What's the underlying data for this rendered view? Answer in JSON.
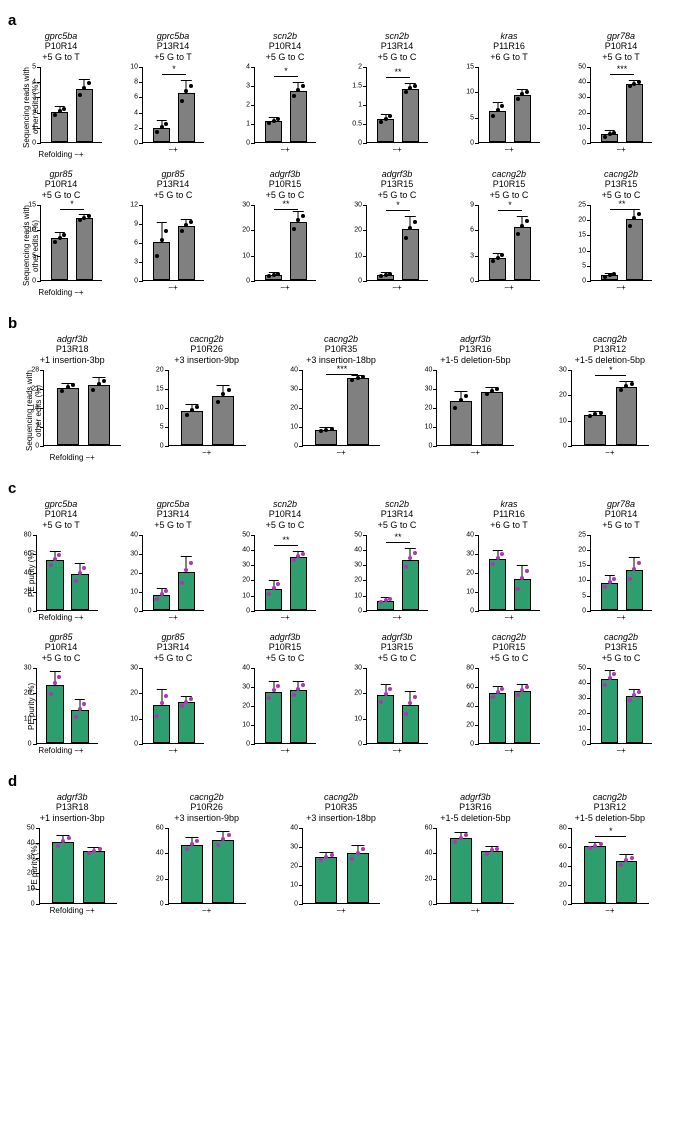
{
  "global": {
    "refolding_label": "Refolding",
    "xticks": [
      "−",
      "+"
    ],
    "gray_bar_color": "#808080",
    "green_bar_color": "#2e9e6e",
    "black_dot": "#000000",
    "magenta_dot": "#b033b8",
    "bar_border": "#000000",
    "bg": "#ffffff"
  },
  "panels": [
    {
      "id": "a",
      "ylabel": "Sequencing reads with\nother edits (%)",
      "bar_color": "gray",
      "dot_color": "black",
      "rows": [
        [
          {
            "gene": "gprc5ba",
            "sub": "P10R14\n+5 G to T",
            "ymax": 5,
            "ytick": 1,
            "vals": [
              2.0,
              3.5
            ],
            "err": [
              0.3,
              0.6
            ],
            "sig": ""
          },
          {
            "gene": "gprc5ba",
            "sub": "P13R14\n+5 G to T",
            "ymax": 10,
            "ytick": 2,
            "vals": [
              1.9,
              6.5
            ],
            "err": [
              0.8,
              1.5
            ],
            "sig": "*"
          },
          {
            "gene": "scn2b",
            "sub": "P10R14\n+5 G to C",
            "ymax": 4,
            "ytick": 1,
            "vals": [
              1.1,
              2.7
            ],
            "err": [
              0.15,
              0.4
            ],
            "sig": "*"
          },
          {
            "gene": "scn2b",
            "sub": "P13R14\n+5 G to C",
            "ymax": 2,
            "ytick": 0.5,
            "vals": [
              0.6,
              1.4
            ],
            "err": [
              0.12,
              0.12
            ],
            "sig": "**"
          },
          {
            "gene": "kras",
            "sub": "P11R16\n+6 G to T",
            "ymax": 15,
            "ytick": 5,
            "vals": [
              6.2,
              9.3
            ],
            "err": [
              1.5,
              1.0
            ],
            "sig": ""
          },
          {
            "gene": "gpr78a",
            "sub": "P10R14\n+5 G to T",
            "ymax": 50,
            "ytick": 10,
            "vals": [
              5,
              38
            ],
            "err": [
              2,
              2
            ],
            "sig": "***"
          }
        ],
        [
          {
            "gene": "gpr85",
            "sub": "P10R14\n+5 G to C",
            "ymax": 15,
            "ytick": 5,
            "vals": [
              8.2,
              12.2
            ],
            "err": [
              1.0,
              0.6
            ],
            "sig": "*"
          },
          {
            "gene": "gpr85",
            "sub": "P13R14\n+5 G to C",
            "ymax": 12,
            "ytick": 3,
            "vals": [
              6.0,
              8.5
            ],
            "err": [
              3.0,
              1.0
            ],
            "sig": ""
          },
          {
            "gene": "adgrf3b",
            "sub": "P10R15\n+5 G to C",
            "ymax": 30,
            "ytick": 10,
            "vals": [
              2.0,
              23
            ],
            "err": [
              0.8,
              4
            ],
            "sig": "**"
          },
          {
            "gene": "adgrf3b",
            "sub": "P13R15\n+5 G to C",
            "ymax": 30,
            "ytick": 10,
            "vals": [
              2.0,
              20
            ],
            "err": [
              0.8,
              5
            ],
            "sig": "*"
          },
          {
            "gene": "cacng2b",
            "sub": "P10R15\n+5 G to C",
            "ymax": 9,
            "ytick": 3,
            "vals": [
              2.6,
              6.3
            ],
            "err": [
              0.5,
              1.2
            ],
            "sig": "*"
          },
          {
            "gene": "cacng2b",
            "sub": "P13R15\n+5 G to C",
            "ymax": 25,
            "ytick": 5,
            "vals": [
              1.5,
              20
            ],
            "err": [
              0.5,
              3
            ],
            "sig": "**"
          }
        ]
      ]
    },
    {
      "id": "b",
      "ylabel": "Sequencing reads with\nother edits (%)",
      "bar_color": "gray",
      "dot_color": "black",
      "rows": [
        [
          {
            "gene": "adgrf3b",
            "sub": "P13R18\n+1 insertion-3bp",
            "ymax": 28,
            "ytick": 7,
            "vals": [
              21,
              22
            ],
            "err": [
              1.5,
              2.5
            ],
            "sig": ""
          },
          {
            "gene": "cacng2b",
            "sub": "P10R26\n+3 insertion-9bp",
            "ymax": 20,
            "ytick": 5,
            "vals": [
              9,
              13
            ],
            "err": [
              1.5,
              2.5
            ],
            "sig": ""
          },
          {
            "gene": "cacng2b",
            "sub": "P10R35\n+3 insertion-18bp",
            "ymax": 40,
            "ytick": 10,
            "vals": [
              8,
              35
            ],
            "err": [
              0.8,
              1.5
            ],
            "sig": "***"
          },
          {
            "gene": "adgrf3b",
            "sub": "P13R16\n+1-5 deletion-5bp",
            "ymax": 40,
            "ytick": 10,
            "vals": [
              23,
              28
            ],
            "err": [
              5,
              2
            ],
            "sig": ""
          },
          {
            "gene": "cacng2b",
            "sub": "P13R12\n+1-5 deletion-5bp",
            "ymax": 30,
            "ytick": 10,
            "vals": [
              12,
              23
            ],
            "err": [
              1,
              2
            ],
            "sig": "*"
          }
        ]
      ]
    },
    {
      "id": "c",
      "ylabel": "PE purity (%)",
      "bar_color": "green",
      "dot_color": "magenta",
      "rows": [
        [
          {
            "gene": "gprc5ba",
            "sub": "P10R14\n+5 G to T",
            "ymax": 80,
            "ytick": 20,
            "vals": [
              53,
              38
            ],
            "err": [
              8,
              10
            ],
            "sig": ""
          },
          {
            "gene": "gprc5ba",
            "sub": "P13R14\n+5 G to T",
            "ymax": 40,
            "ytick": 10,
            "vals": [
              8,
              20
            ],
            "err": [
              3,
              8
            ],
            "sig": ""
          },
          {
            "gene": "scn2b",
            "sub": "P10R14\n+5 G to C",
            "ymax": 50,
            "ytick": 10,
            "vals": [
              14,
              35
            ],
            "err": [
              5,
              3
            ],
            "sig": "**"
          },
          {
            "gene": "scn2b",
            "sub": "P13R14\n+5 G to C",
            "ymax": 50,
            "ytick": 10,
            "vals": [
              6,
              33
            ],
            "err": [
              1.5,
              7
            ],
            "sig": "**"
          },
          {
            "gene": "kras",
            "sub": "P11R16\n+6 G to T",
            "ymax": 40,
            "ytick": 10,
            "vals": [
              27,
              16
            ],
            "err": [
              4,
              7
            ],
            "sig": ""
          },
          {
            "gene": "gpr78a",
            "sub": "P10R14\n+5 G to T",
            "ymax": 25,
            "ytick": 5,
            "vals": [
              9,
              13
            ],
            "err": [
              2,
              4
            ],
            "sig": ""
          }
        ],
        [
          {
            "gene": "gpr85",
            "sub": "P10R14\n+5 G to C",
            "ymax": 30,
            "ytick": 10,
            "vals": [
              23,
              13
            ],
            "err": [
              5,
              4
            ],
            "sig": ""
          },
          {
            "gene": "gpr85",
            "sub": "P13R14\n+5 G to C",
            "ymax": 30,
            "ytick": 10,
            "vals": [
              15,
              16
            ],
            "err": [
              6,
              2
            ],
            "sig": ""
          },
          {
            "gene": "adgrf3b",
            "sub": "P10R15\n+5 G to C",
            "ymax": 40,
            "ytick": 10,
            "vals": [
              27,
              28
            ],
            "err": [
              5,
              4
            ],
            "sig": ""
          },
          {
            "gene": "adgrf3b",
            "sub": "P13R15\n+5 G to C",
            "ymax": 30,
            "ytick": 10,
            "vals": [
              19,
              15
            ],
            "err": [
              4,
              5
            ],
            "sig": ""
          },
          {
            "gene": "cacng2b",
            "sub": "P10R15\n+5 G to C",
            "ymax": 80,
            "ytick": 20,
            "vals": [
              53,
              55
            ],
            "err": [
              6,
              6
            ],
            "sig": ""
          },
          {
            "gene": "cacng2b",
            "sub": "P13R15\n+5 G to C",
            "ymax": 50,
            "ytick": 10,
            "vals": [
              42,
              31
            ],
            "err": [
              5,
              4
            ],
            "sig": ""
          }
        ]
      ]
    },
    {
      "id": "d",
      "ylabel": "PE purity (%)",
      "bar_color": "green",
      "dot_color": "magenta",
      "rows": [
        [
          {
            "gene": "adgrf3b",
            "sub": "P13R18\n+1 insertion-3bp",
            "ymax": 50,
            "ytick": 10,
            "vals": [
              40,
              34
            ],
            "err": [
              4,
              2
            ],
            "sig": ""
          },
          {
            "gene": "cacng2b",
            "sub": "P10R26\n+3 insertion-9bp",
            "ymax": 60,
            "ytick": 20,
            "vals": [
              46,
              50
            ],
            "err": [
              5,
              6
            ],
            "sig": ""
          },
          {
            "gene": "cacng2b",
            "sub": "P10R35\n+3 insertion-18bp",
            "ymax": 40,
            "ytick": 10,
            "vals": [
              24,
              26
            ],
            "err": [
              2,
              4
            ],
            "sig": ""
          },
          {
            "gene": "adgrf3b",
            "sub": "P13R16\n+1-5 deletion-5bp",
            "ymax": 60,
            "ytick": 20,
            "vals": [
              51,
              41
            ],
            "err": [
              4,
              3
            ],
            "sig": ""
          },
          {
            "gene": "cacng2b",
            "sub": "P13R12\n+1-5 deletion-5bp",
            "ymax": 80,
            "ytick": 20,
            "vals": [
              60,
              44
            ],
            "err": [
              3,
              6
            ],
            "sig": "*"
          }
        ]
      ]
    }
  ]
}
